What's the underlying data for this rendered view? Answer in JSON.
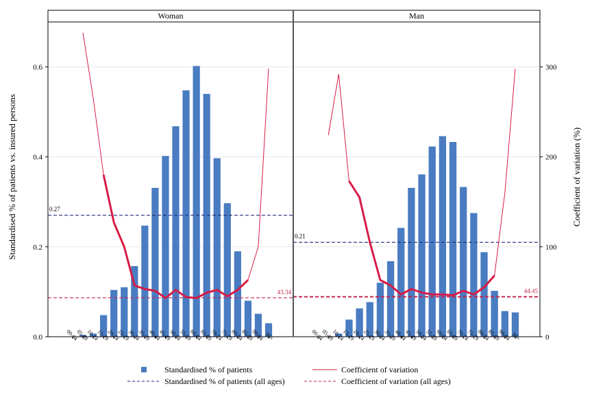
{
  "chart_data": {
    "type": "bar",
    "panels": [
      "Woman",
      "Man"
    ],
    "categories": [
      "00-04",
      "05-09",
      "10-14",
      "15-19",
      "20-24",
      "25-29",
      "30-34",
      "35-39",
      "40-44",
      "45-49",
      "50-54",
      "55-59",
      "60-64",
      "65-69",
      "70-74",
      "75-79",
      "80-84",
      "85-89",
      "90-94",
      "95+"
    ],
    "ylabel": "Standardised % of patients vs. insured persons",
    "y2label": "Coefficient of variation (%)",
    "ylim": [
      0,
      0.7
    ],
    "y2lim": [
      0,
      350
    ],
    "yticks": [
      "0.0",
      "0.2",
      "0.4",
      "0.6"
    ],
    "y2ticks": [
      "0",
      "100",
      "200",
      "300"
    ],
    "series": [
      {
        "name": "Standardised % of patients",
        "woman": [
          0.0,
          0.004,
          0.007,
          0.048,
          0.104,
          0.11,
          0.157,
          0.247,
          0.331,
          0.402,
          0.468,
          0.548,
          0.602,
          0.54,
          0.397,
          0.297,
          0.19,
          0.08,
          0.051,
          0.03
        ],
        "man": [
          0.0,
          0.001,
          0.007,
          0.038,
          0.063,
          0.077,
          0.12,
          0.168,
          0.242,
          0.331,
          0.361,
          0.423,
          0.446,
          0.433,
          0.333,
          0.275,
          0.188,
          0.102,
          0.057,
          0.054
        ]
      },
      {
        "name": "Coefficient of variation",
        "woman": [
          null,
          338,
          265,
          180,
          127,
          100,
          57,
          53,
          51,
          43,
          52,
          44,
          43,
          49,
          52,
          45,
          52,
          63,
          100,
          298
        ],
        "man": [
          null,
          224,
          292,
          173,
          155,
          105,
          63,
          57,
          47,
          53,
          49,
          47,
          47,
          46,
          51,
          47,
          55,
          68,
          160,
          298
        ]
      },
      {
        "name": "Standardised % of patients (all ages)",
        "woman": 0.27,
        "man": 0.21
      },
      {
        "name": "Coefficient of variation (all ages)",
        "woman": 43.34,
        "man": 44.45
      }
    ],
    "reference_labels": {
      "woman_pct": "0.27",
      "man_pct": "0.21",
      "woman_cv": "43.34",
      "man_cv": "44.45"
    },
    "thick_cv_range": [
      3,
      17
    ],
    "colors": {
      "bar": "#4a7cc2",
      "cv": "#d81b45",
      "ref_pct": "#1f2a7c",
      "ref_cv": "#c4274c",
      "grid": "#e6e6e6",
      "divider": "#555555"
    },
    "legend_position": "bottom"
  }
}
